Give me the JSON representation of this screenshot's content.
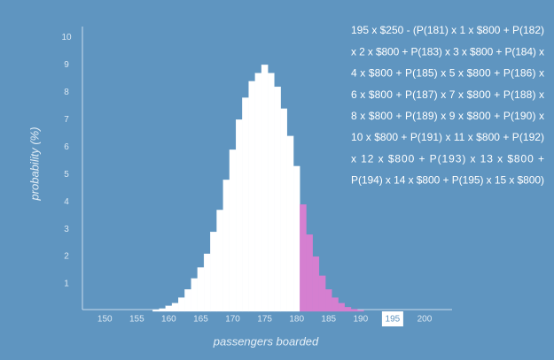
{
  "chart_data": {
    "type": "bar",
    "x_label": "passengers boarded",
    "y_label": "probability (%)",
    "x": [
      158,
      159,
      160,
      161,
      162,
      163,
      164,
      165,
      166,
      167,
      168,
      169,
      170,
      171,
      172,
      173,
      174,
      175,
      176,
      177,
      178,
      179,
      180,
      181,
      182,
      183,
      184,
      185,
      186,
      187,
      188,
      189,
      190
    ],
    "values": [
      0.05,
      0.1,
      0.2,
      0.3,
      0.5,
      0.8,
      1.2,
      1.6,
      2.1,
      2.9,
      3.7,
      4.8,
      5.9,
      7.0,
      7.8,
      8.4,
      8.7,
      9.0,
      8.7,
      8.2,
      7.4,
      6.4,
      5.3,
      3.9,
      2.8,
      2.0,
      1.3,
      0.8,
      0.5,
      0.3,
      0.15,
      0.08,
      0.04
    ],
    "color": "#ffffff",
    "highlight_color": "#d57fd0",
    "highlight_start": 181,
    "xlim": [
      146.5,
      204.3
    ],
    "xticks": [
      150,
      155,
      160,
      165,
      170,
      175,
      180,
      185,
      190,
      195,
      200
    ],
    "boxed_xtick": 195,
    "ylim": [
      0,
      10.4
    ],
    "yticks": [
      1,
      2,
      3,
      4,
      5,
      6,
      7,
      8,
      9,
      10
    ],
    "annotation_lines": [
      "195 x $250 - (P(181) x 1 x $800 + P(182)",
      "x 2 x $800 + P(183) x 3 x $800 + P(184) x",
      "4 x $800 + P(185) x 5 x $800 + P(186) x",
      "6 x $800 + P(187) x 7 x $800 + P(188) x",
      "8 x $800 + P(189) x 9 x $800 + P(190) x",
      "10 x $800 + P(191) x 11 x $800 + P(192)",
      "x 12 x $800 + P(193) x 13 x $800 +",
      "P(194) x 14 x $800 + P(195) x 15 x $800)"
    ]
  }
}
